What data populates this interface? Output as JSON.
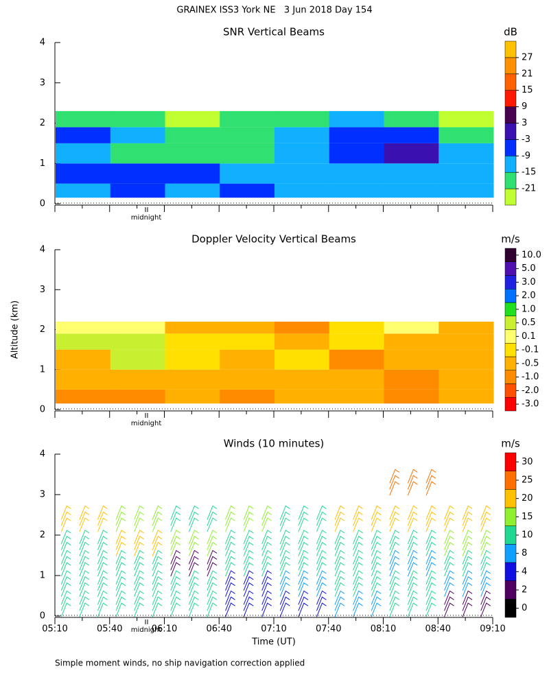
{
  "title": "GRAINEX ISS3 York NE   3 Jun 2018 Day 154",
  "note": "Simple moment winds, no ship navigation correction applied",
  "chart_data": [
    {
      "type": "heatmap",
      "title": "SNR Vertical Beams",
      "unit": "dB",
      "annotation": "midnight",
      "ylim": [
        0,
        4
      ],
      "yticks": [
        0,
        1,
        2,
        3,
        4
      ],
      "levels": [
        -21,
        -15,
        -9,
        -3,
        3,
        9,
        15,
        21,
        27
      ],
      "colors": [
        "#c0ff30",
        "#30e070",
        "#10b0ff",
        "#0030ff",
        "#3a10b0",
        "#480050",
        "#ff1a00",
        "#ff6000",
        "#ff9000",
        "#ffc000"
      ],
      "altitude_edges": [
        0.15,
        0.5,
        1.0,
        1.5,
        1.9,
        2.3
      ],
      "values": [
        [
          -12,
          -6,
          -12,
          -6,
          -12,
          -12,
          -12,
          -12
        ],
        [
          -6,
          -6,
          -6,
          -12,
          -12,
          -12,
          -12,
          -12
        ],
        [
          -12,
          -18,
          -18,
          -18,
          -12,
          -6,
          0,
          -12
        ],
        [
          -6,
          -12,
          -18,
          -18,
          -12,
          -6,
          -6,
          -18
        ],
        [
          -18,
          -18,
          -24,
          -18,
          -18,
          -12,
          -18,
          -24
        ]
      ]
    },
    {
      "type": "heatmap",
      "title": "Doppler Velocity Vertical Beams",
      "unit": "m/s",
      "ylabel": "Altitude (km)",
      "annotation": "midnight",
      "ylim": [
        0,
        4
      ],
      "yticks": [
        0,
        1,
        2,
        3,
        4
      ],
      "levels": [
        {
          "value": -3,
          "label": "-3.0"
        },
        {
          "value": -2,
          "label": "-2.0"
        },
        {
          "value": -1,
          "label": "-1.0"
        },
        -0.5,
        -0.1,
        0.1,
        0.5,
        {
          "value": 1,
          "label": "1.0"
        },
        {
          "value": 2,
          "label": "2.0"
        },
        {
          "value": 3,
          "label": "3.0"
        },
        {
          "value": 5,
          "label": "5.0"
        },
        {
          "value": 10,
          "label": "10.0"
        }
      ],
      "colors": [
        "#ff0000",
        "#ff5000",
        "#ff8c00",
        "#ffb000",
        "#ffe000",
        "#ffff70",
        "#c8f030",
        "#20e020",
        "#0070ff",
        "#2020e0",
        "#5010b0",
        "#300030"
      ],
      "altitude_edges": [
        0.15,
        0.5,
        1.0,
        1.5,
        1.9,
        2.2
      ],
      "values": [
        [
          -0.7,
          -0.7,
          -0.3,
          -0.7,
          -0.3,
          -0.3,
          -0.7,
          -0.3
        ],
        [
          -0.3,
          -0.3,
          -0.3,
          -0.3,
          -0.3,
          -0.3,
          -0.7,
          -0.3
        ],
        [
          -0.3,
          0.7,
          -0.05,
          -0.3,
          -0.05,
          -0.7,
          -0.3,
          -0.3
        ],
        [
          0.7,
          0.7,
          -0.05,
          -0.05,
          -0.3,
          -0.05,
          -0.3,
          -0.3
        ],
        [
          0.3,
          0.3,
          -0.3,
          -0.3,
          -0.7,
          -0.05,
          0.3,
          -0.3
        ]
      ]
    },
    {
      "type": "barbs",
      "title": "Winds (10 minutes)",
      "unit": "m/s",
      "annotation": "midnight",
      "xlabel": "Time (UT)",
      "ylim": [
        0,
        4
      ],
      "yticks": [
        0,
        1,
        2,
        3,
        4
      ],
      "xticks": [
        "05:10",
        "05:40",
        "06:10",
        "06:40",
        "07:10",
        "07:40",
        "08:10",
        "08:40",
        "09:10"
      ],
      "levels": [
        0,
        2,
        4,
        8,
        10,
        15,
        20,
        25,
        30
      ],
      "colors": [
        "#000000",
        "#500060",
        "#1010e0",
        "#10a0ff",
        "#20d890",
        "#90f030",
        "#ffc000",
        "#ff7000",
        "#ff0000"
      ],
      "altitudes": [
        0.3,
        0.8,
        1.3,
        1.8,
        2.4,
        3.3
      ],
      "values": [
        [
          12,
          12,
          12,
          6,
          5,
          9,
          12,
          3
        ],
        [
          12,
          12,
          12,
          6,
          9,
          12,
          12,
          9
        ],
        [
          12,
          12,
          3,
          12,
          12,
          12,
          9,
          12
        ],
        [
          12,
          22,
          17,
          12,
          12,
          12,
          12,
          17
        ],
        [
          22,
          17,
          12,
          17,
          12,
          22,
          22,
          22
        ],
        [
          null,
          null,
          null,
          null,
          null,
          null,
          27,
          null
        ]
      ]
    }
  ]
}
